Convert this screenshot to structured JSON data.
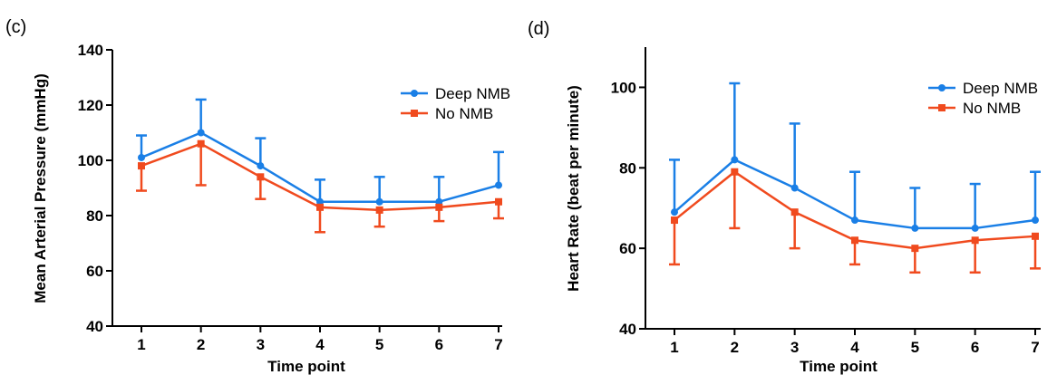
{
  "chart_data": [
    {
      "panel_label": "(c)",
      "type": "line",
      "xlabel": "Time point",
      "ylabel": "Mean Arterial Pressure (mmHg)",
      "x": [
        1,
        2,
        3,
        4,
        5,
        6,
        7
      ],
      "xticks": [
        "1",
        "2",
        "3",
        "4",
        "5",
        "6",
        "7"
      ],
      "ylim": [
        40,
        140
      ],
      "yticks": [
        40,
        60,
        80,
        100,
        120,
        140
      ],
      "grid": false,
      "legend_position": "top-right",
      "series": [
        {
          "name": "Deep NMB",
          "color": "#1a7fe6",
          "marker": "circle",
          "values": [
            101,
            110,
            98,
            85,
            85,
            85,
            91
          ],
          "error_upper": [
            109,
            122,
            108,
            93,
            94,
            94,
            103
          ],
          "error_direction": "up"
        },
        {
          "name": "No NMB",
          "color": "#f04a1e",
          "marker": "square",
          "values": [
            98,
            106,
            94,
            83,
            82,
            83,
            85
          ],
          "error_lower": [
            89,
            91,
            86,
            74,
            76,
            78,
            79
          ],
          "error_direction": "down"
        }
      ]
    },
    {
      "panel_label": "(d)",
      "type": "line",
      "xlabel": "Time point",
      "ylabel": "Heart Rate (beat per minute)",
      "x": [
        1,
        2,
        3,
        4,
        5,
        6,
        7
      ],
      "xticks": [
        "1",
        "2",
        "3",
        "4",
        "5",
        "6",
        "7"
      ],
      "ylim": [
        40,
        110
      ],
      "yticks": [
        40,
        60,
        80,
        100
      ],
      "grid": false,
      "legend_position": "top-right",
      "series": [
        {
          "name": "Deep NMB",
          "color": "#1a7fe6",
          "marker": "circle",
          "values": [
            69,
            82,
            75,
            67,
            65,
            65,
            67
          ],
          "error_upper": [
            82,
            101,
            91,
            79,
            75,
            76,
            79
          ],
          "error_direction": "up"
        },
        {
          "name": "No NMB",
          "color": "#f04a1e",
          "marker": "square",
          "values": [
            67,
            79,
            69,
            62,
            60,
            62,
            63
          ],
          "error_lower": [
            56,
            65,
            60,
            56,
            54,
            54,
            55
          ],
          "error_direction": "down"
        }
      ]
    }
  ]
}
